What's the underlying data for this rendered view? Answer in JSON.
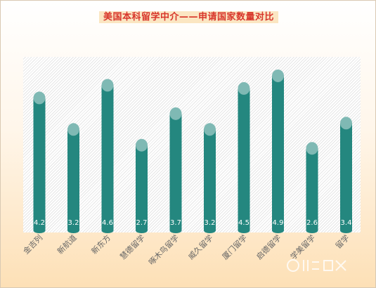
{
  "chart_data": {
    "type": "bar",
    "title": "美国本科留学中介——申请国家数量对比",
    "categories": [
      "金吉列",
      "新航道",
      "新东方",
      "慧德留学",
      "啄木鸟留学",
      "威久留学",
      "厦门留学",
      "启德留学",
      "学美留学",
      "留学"
    ],
    "values": [
      4.2,
      3.2,
      4.6,
      2.7,
      3.7,
      3.2,
      4.5,
      4.9,
      2.6,
      3.4
    ],
    "ylim": [
      0,
      5.5
    ],
    "grid": false,
    "legend": "none",
    "colors": {
      "bar": "#24877f",
      "cap": "#7fb9b4",
      "title": "#d8362b"
    }
  }
}
